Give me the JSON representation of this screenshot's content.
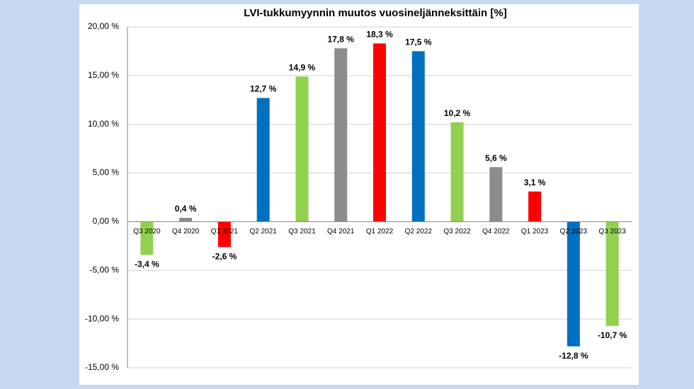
{
  "chart_data": {
    "type": "bar",
    "title": "LVI-tukkumyynnin muutos vuosineljänneksittäin [%]",
    "categories": [
      "Q3 2020",
      "Q4 2020",
      "Q1 2021",
      "Q2 2021",
      "Q3 2021",
      "Q4 2021",
      "Q1 2022",
      "Q2 2022",
      "Q3 2022",
      "Q4 2022",
      "Q1 2023",
      "Q2 2023",
      "Q3 2023"
    ],
    "values": [
      -3.4,
      0.4,
      -2.6,
      12.7,
      14.9,
      17.8,
      18.3,
      17.5,
      10.2,
      5.6,
      3.1,
      -12.8,
      -10.7
    ],
    "value_labels": [
      "-3,4 %",
      "0,4 %",
      "-2,6 %",
      "12,7 %",
      "14,9 %",
      "17,8 %",
      "18,3 %",
      "17,5 %",
      "10,2 %",
      "5,6 %",
      "3,1 %",
      "-12,8 %",
      "-10,7 %"
    ],
    "colors": [
      "#92d050",
      "#8c8c8c",
      "#ff0000",
      "#0070c0",
      "#92d050",
      "#8c8c8c",
      "#ff0000",
      "#0070c0",
      "#92d050",
      "#8c8c8c",
      "#ff0000",
      "#0070c0",
      "#92d050"
    ],
    "ylim": [
      -15,
      20
    ],
    "yticks": [
      {
        "value": -15,
        "label": "-15,00 %"
      },
      {
        "value": -10,
        "label": "-10,00 %"
      },
      {
        "value": -5,
        "label": "-5,00 %"
      },
      {
        "value": 0,
        "label": "0,00 %"
      },
      {
        "value": 5,
        "label": "5,00 %"
      },
      {
        "value": 10,
        "label": "10,00 %"
      },
      {
        "value": 15,
        "label": "15,00 %"
      },
      {
        "value": 20,
        "label": "20,00 %"
      }
    ],
    "grid": true
  }
}
